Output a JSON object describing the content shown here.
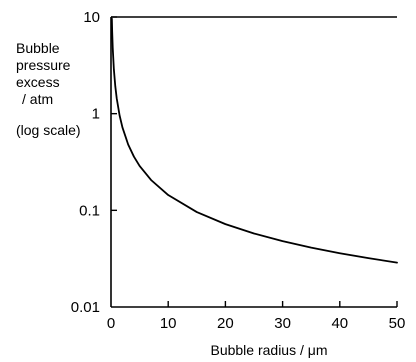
{
  "chart_data": {
    "type": "line",
    "title": "",
    "xlabel": "Bubble radius / μm",
    "ylabel_lines": [
      "Bubble",
      "pressure",
      "excess",
      " / atm"
    ],
    "ylabel_note": "(log scale)",
    "xlim": [
      0,
      50
    ],
    "ylim": [
      0.01,
      10
    ],
    "yscale": "log",
    "grid": false,
    "x_ticks": [
      "0",
      "10",
      "20",
      "30",
      "40",
      "50"
    ],
    "y_ticks": [
      "0.01",
      "0.1",
      "1",
      "10"
    ],
    "series": [
      {
        "x": [
          0.15,
          0.2,
          0.3,
          0.5,
          0.75,
          1,
          1.5,
          2,
          3,
          4,
          5,
          7,
          10,
          15,
          20,
          25,
          30,
          35,
          40,
          45,
          50
        ],
        "y": [
          9.6,
          7.2,
          4.8,
          2.88,
          1.92,
          1.44,
          0.96,
          0.72,
          0.48,
          0.36,
          0.288,
          0.206,
          0.144,
          0.096,
          0.072,
          0.0576,
          0.048,
          0.0411,
          0.036,
          0.032,
          0.0288
        ]
      }
    ]
  }
}
